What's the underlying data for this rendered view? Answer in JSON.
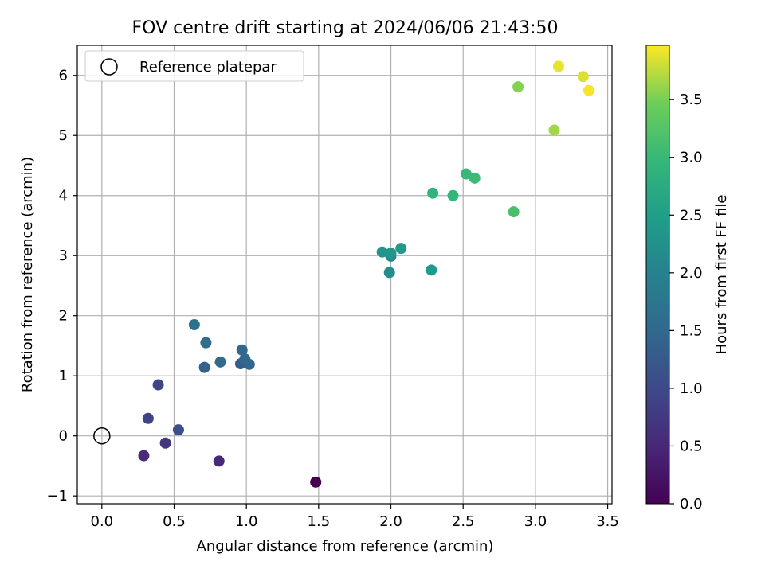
{
  "chart_data": {
    "type": "scatter",
    "title": "FOV centre drift starting at 2024/06/06 21:43:50",
    "xlabel": "Angular distance from reference (arcmin)",
    "ylabel": "Rotation from reference (arcmin)",
    "xlim": [
      -0.17,
      3.53
    ],
    "ylim": [
      -1.13,
      6.5
    ],
    "xticks": [
      0.0,
      0.5,
      1.0,
      1.5,
      2.0,
      2.5,
      3.0,
      3.5
    ],
    "xtick_labels": [
      "0.0",
      "0.5",
      "1.0",
      "1.5",
      "2.0",
      "2.5",
      "3.0",
      "3.5"
    ],
    "yticks": [
      -1,
      0,
      1,
      2,
      3,
      4,
      5,
      6
    ],
    "ytick_labels": [
      "−1",
      "0",
      "1",
      "2",
      "3",
      "4",
      "5",
      "6"
    ],
    "grid": true,
    "legend": {
      "position": "upper-left",
      "entries": [
        "Reference platepar"
      ]
    },
    "reference_point": {
      "x": 0.0,
      "y": 0.0
    },
    "colorbar": {
      "label": "Hours from first FF file",
      "colormap": "viridis",
      "range": [
        0.0,
        3.97
      ],
      "ticks": [
        0.0,
        0.5,
        1.0,
        1.5,
        2.0,
        2.5,
        3.0,
        3.5
      ],
      "tick_labels": [
        "0.0",
        "0.5",
        "1.0",
        "1.5",
        "2.0",
        "2.5",
        "3.0",
        "3.5"
      ]
    },
    "points": [
      {
        "x": 1.48,
        "y": -0.77,
        "t": 0.0
      },
      {
        "x": 0.81,
        "y": -0.42,
        "t": 0.5
      },
      {
        "x": 0.29,
        "y": -0.33,
        "t": 0.55
      },
      {
        "x": 0.44,
        "y": -0.12,
        "t": 0.7
      },
      {
        "x": 0.39,
        "y": 0.85,
        "t": 0.95
      },
      {
        "x": 0.32,
        "y": 0.29,
        "t": 0.9
      },
      {
        "x": 0.53,
        "y": 0.1,
        "t": 1.1
      },
      {
        "x": 0.96,
        "y": 1.2,
        "t": 1.3
      },
      {
        "x": 0.71,
        "y": 1.14,
        "t": 1.4
      },
      {
        "x": 1.02,
        "y": 1.19,
        "t": 1.45
      },
      {
        "x": 0.97,
        "y": 1.43,
        "t": 1.5
      },
      {
        "x": 0.99,
        "y": 1.28,
        "t": 1.5
      },
      {
        "x": 0.82,
        "y": 1.23,
        "t": 1.55
      },
      {
        "x": 0.72,
        "y": 1.55,
        "t": 1.6
      },
      {
        "x": 0.64,
        "y": 1.85,
        "t": 1.65
      },
      {
        "x": 2.0,
        "y": 2.99,
        "t": 2.1
      },
      {
        "x": 1.99,
        "y": 2.72,
        "t": 2.2
      },
      {
        "x": 1.94,
        "y": 3.06,
        "t": 2.3
      },
      {
        "x": 2.0,
        "y": 3.04,
        "t": 2.35
      },
      {
        "x": 2.07,
        "y": 3.12,
        "t": 2.4
      },
      {
        "x": 2.28,
        "y": 2.76,
        "t": 2.45
      },
      {
        "x": 2.29,
        "y": 4.04,
        "t": 2.9
      },
      {
        "x": 2.43,
        "y": 4.0,
        "t": 2.95
      },
      {
        "x": 2.52,
        "y": 4.36,
        "t": 3.0
      },
      {
        "x": 2.58,
        "y": 4.29,
        "t": 3.05
      },
      {
        "x": 2.85,
        "y": 3.73,
        "t": 3.15
      },
      {
        "x": 2.88,
        "y": 5.81,
        "t": 3.55
      },
      {
        "x": 3.13,
        "y": 5.09,
        "t": 3.65
      },
      {
        "x": 3.33,
        "y": 5.98,
        "t": 3.85
      },
      {
        "x": 3.16,
        "y": 6.15,
        "t": 3.9
      },
      {
        "x": 3.37,
        "y": 5.75,
        "t": 3.95
      }
    ]
  }
}
